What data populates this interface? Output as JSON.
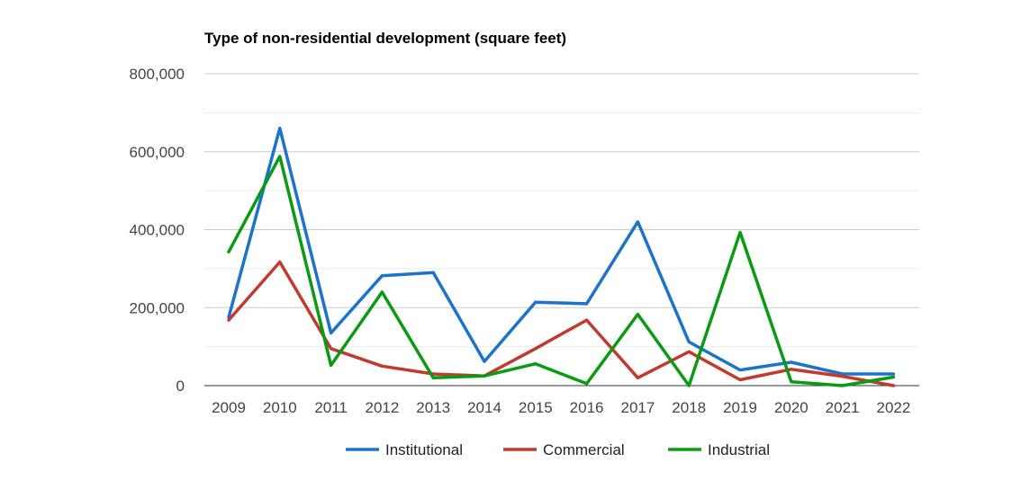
{
  "chart_data": {
    "type": "line",
    "title": "Type of non-residential development (square feet)",
    "xlabel": "",
    "ylabel": "",
    "categories": [
      "2009",
      "2010",
      "2011",
      "2012",
      "2013",
      "2014",
      "2015",
      "2016",
      "2017",
      "2018",
      "2019",
      "2020",
      "2021",
      "2022"
    ],
    "ylim": [
      0,
      800000
    ],
    "y_ticks": [
      0,
      200000,
      400000,
      600000,
      800000
    ],
    "y_tick_labels": [
      "0",
      "200,000",
      "400,000",
      "600,000",
      "800,000"
    ],
    "grid": true,
    "legend_position": "bottom",
    "series": [
      {
        "name": "Institutional",
        "color": "#1c73cb",
        "values": [
          175000,
          660000,
          135000,
          282000,
          290000,
          62000,
          214000,
          210000,
          420000,
          112000,
          40000,
          60000,
          30000,
          30000
        ]
      },
      {
        "name": "Commercial",
        "color": "#c23a2f",
        "values": [
          168000,
          317000,
          95000,
          50000,
          30000,
          25000,
          95000,
          168000,
          20000,
          87000,
          15000,
          42000,
          24000,
          0
        ]
      },
      {
        "name": "Industrial",
        "color": "#0b9a13",
        "values": [
          343000,
          588000,
          52000,
          240000,
          20000,
          25000,
          56000,
          5000,
          183000,
          0,
          393000,
          10000,
          0,
          22000
        ]
      }
    ]
  }
}
